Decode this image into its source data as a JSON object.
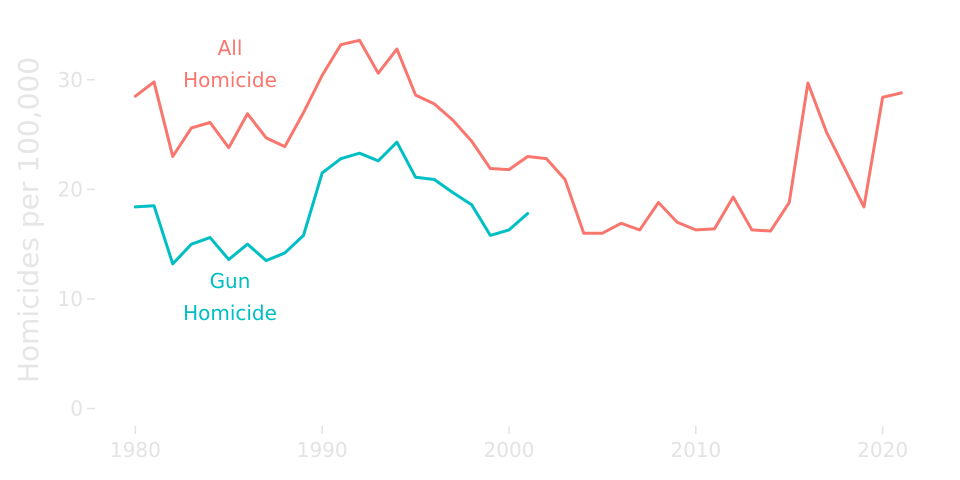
{
  "chart_data": {
    "type": "line",
    "title": "",
    "xlabel": "",
    "ylabel": "Homicides per 100,000",
    "xlim": [
      1978,
      2022
    ],
    "ylim": [
      -1.5,
      36
    ],
    "x_ticks": [
      1980,
      1990,
      2000,
      2010,
      2020
    ],
    "y_ticks": [
      0,
      10,
      20,
      30
    ],
    "grid": false,
    "legend": "none",
    "series": [
      {
        "name": "All\nHomicide",
        "color": "#f8766d",
        "x": [
          1980,
          1981,
          1982,
          1983,
          1984,
          1985,
          1986,
          1987,
          1988,
          1989,
          1990,
          1991,
          1992,
          1993,
          1994,
          1995,
          1996,
          1997,
          1998,
          1999,
          2000,
          2001,
          2002,
          2003,
          2004,
          2005,
          2006,
          2007,
          2008,
          2009,
          2010,
          2011,
          2012,
          2013,
          2014,
          2015,
          2016,
          2017,
          2018,
          2019,
          2020,
          2021
        ],
        "values": [
          28.5,
          29.8,
          23.0,
          25.6,
          26.1,
          23.8,
          26.9,
          24.7,
          23.9,
          27.0,
          30.4,
          33.2,
          33.6,
          30.6,
          32.8,
          28.6,
          27.8,
          26.3,
          24.4,
          21.9,
          21.8,
          23.0,
          22.8,
          20.9,
          16.0,
          16.0,
          16.9,
          16.3,
          18.8,
          17.0,
          16.3,
          16.4,
          19.3,
          16.3,
          16.2,
          18.8,
          29.7,
          25.2,
          21.8,
          18.4,
          28.4,
          28.8
        ]
      },
      {
        "name": "Gun\nHomicide",
        "color": "#00bfc4",
        "x": [
          1980,
          1981,
          1982,
          1983,
          1984,
          1985,
          1986,
          1987,
          1988,
          1989,
          1990,
          1991,
          1992,
          1993,
          1994,
          1995,
          1996,
          1997,
          1998,
          1999,
          2000,
          2001
        ],
        "values": [
          18.4,
          18.5,
          13.2,
          15.0,
          15.6,
          13.6,
          15.0,
          13.5,
          14.2,
          15.8,
          21.5,
          22.8,
          23.3,
          22.6,
          24.3,
          21.1,
          20.9,
          19.7,
          18.6,
          15.8,
          16.3,
          17.8
        ]
      }
    ]
  }
}
